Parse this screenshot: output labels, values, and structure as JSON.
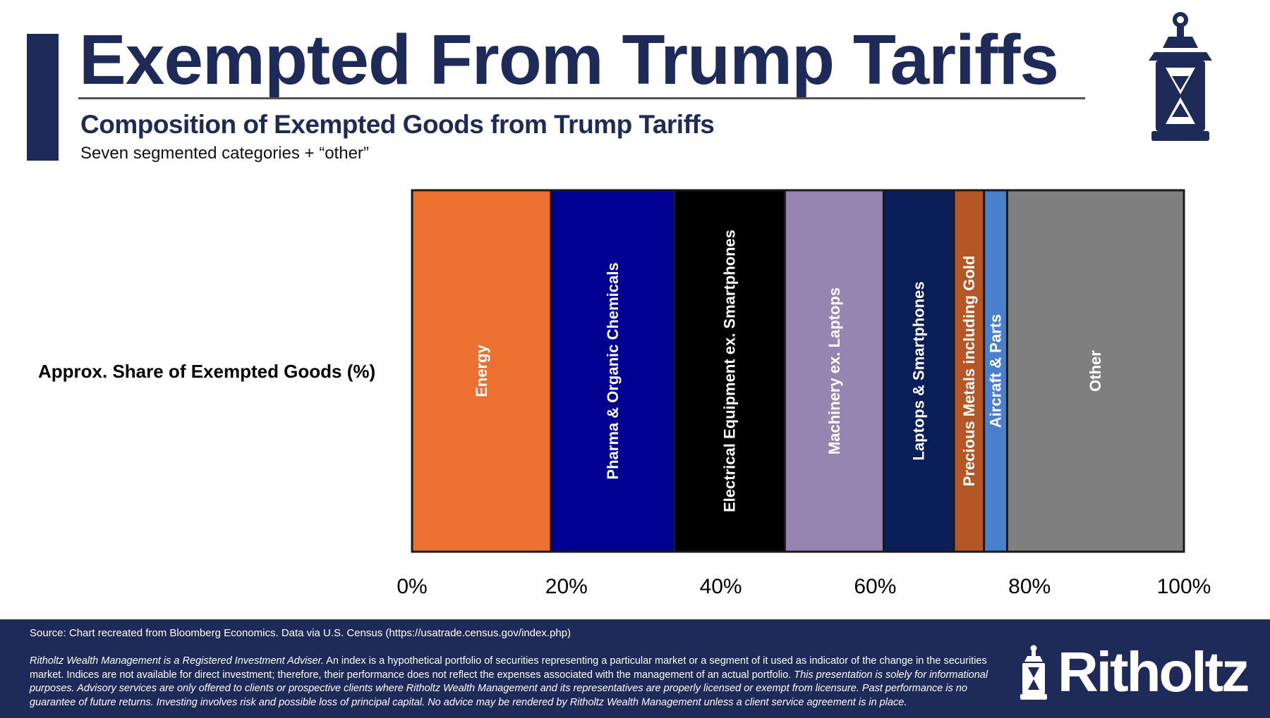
{
  "header": {
    "title": "Exempted From Trump Tariffs",
    "subtitle": "Composition of Exempted Goods from Trump Tariffs",
    "description": "Seven segmented categories + “other”",
    "brand_color": "#1e2a57",
    "icon": "lantern-icon"
  },
  "chart_data": {
    "type": "bar",
    "orientation": "horizontal-stacked-100",
    "title": "Composition of Exempted Goods from Trump Tariffs",
    "categories": [
      "Approx. Share of Exempted Goods (%)"
    ],
    "ylabel": "Approx. Share of Exempted Goods (%)",
    "xlim": [
      0,
      100
    ],
    "xticks": [
      "0%",
      "20%",
      "40%",
      "60%",
      "80%",
      "100%"
    ],
    "grid": false,
    "legend": "none (labels inside segments)",
    "series": [
      {
        "name": "Energy",
        "values": [
          18.0
        ],
        "color": "#ec7030",
        "label_color": "#ffffff"
      },
      {
        "name": "Pharma & Organic Chemicals",
        "values": [
          16.0
        ],
        "color": "#000091",
        "label_color": "#ffffff"
      },
      {
        "name": "Electrical Equipment ex. Smartphones",
        "values": [
          14.3
        ],
        "color": "#000000",
        "label_color": "#ffffff"
      },
      {
        "name": "Machinery ex. Laptops",
        "values": [
          12.8
        ],
        "color": "#9685b0",
        "label_color": "#ffffff"
      },
      {
        "name": "Laptops & Smartphones",
        "values": [
          9.1
        ],
        "color": "#0a1e58",
        "label_color": "#ffffff"
      },
      {
        "name": "Precious Metals including Gold",
        "values": [
          3.9
        ],
        "color": "#b55627",
        "label_color": "#ffffff"
      },
      {
        "name": "Aircraft & Parts",
        "values": [
          3.0
        ],
        "color": "#4a7fcb",
        "label_color": "#ffffff"
      },
      {
        "name": "Other",
        "values": [
          22.9
        ],
        "color": "#7f7f7f",
        "label_color": "#ffffff"
      }
    ]
  },
  "footer": {
    "source": "Source: Chart recreated from Bloomberg Economics. Data via U.S. Census (https://usatrade.census.gov/index.php)",
    "disclaimer_1_italic": "Ritholtz Wealth Management is a Registered Investment Adviser.",
    "disclaimer_2": " An index is a hypothetical portfolio of securities representing a particular market or a segment of it used as indicator of the change in the securities market. Indices are not available for direct investment; therefore, their performance does not reflect the expenses associated with the management of an actual portfolio. ",
    "disclaimer_3_italic": "This presentation is solely for informational purposes. Advisory services are only offered to clients or prospective clients where Ritholtz Wealth Management and its representatives are properly licensed or exempt from licensure. Past performance is no guarantee of future returns. Investing involves risk and possible loss of principal capital. No advice may be rendered by Ritholtz Wealth Management unless a client service agreement is in place.",
    "logo_text": "Ritholtz"
  }
}
